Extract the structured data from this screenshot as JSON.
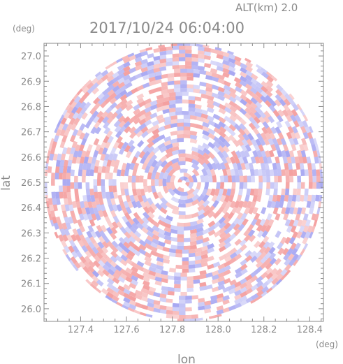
{
  "header": {
    "altitude_label": "ALT(km)  2.0",
    "timestamp": "2017/10/24  06:04:00"
  },
  "chart_data": {
    "type": "heatmap",
    "title": "2017/10/24  06:04:00",
    "subtitle": "ALT(km)  2.0",
    "xlabel": "lon",
    "ylabel": "lat",
    "x_unit": "(deg)",
    "y_unit": "(deg)",
    "xlim": [
      127.24,
      128.46
    ],
    "ylim": [
      25.95,
      27.05
    ],
    "x_ticks": [
      127.4,
      127.6,
      127.8,
      128.0,
      128.2,
      128.4
    ],
    "x_tick_labels": [
      "127.4",
      "127.6",
      "127.8",
      "128.0",
      "128.2",
      "128.4"
    ],
    "y_ticks": [
      26.0,
      26.1,
      26.2,
      26.3,
      26.4,
      26.5,
      26.6,
      26.7,
      26.8,
      26.9,
      27.0
    ],
    "y_tick_labels": [
      "26.0",
      "26.1",
      "26.2",
      "26.3",
      "26.4",
      "26.5",
      "26.6",
      "26.7",
      "26.8",
      "26.9",
      "27.0"
    ],
    "radar_center": {
      "lon": 127.85,
      "lat": 26.5
    },
    "radar_range_lat_deg": 0.55,
    "grid": false,
    "colors": {
      "positive": "#f4a0a0",
      "negative": "#a8a8f2",
      "axis": "#8a8a8a"
    }
  }
}
